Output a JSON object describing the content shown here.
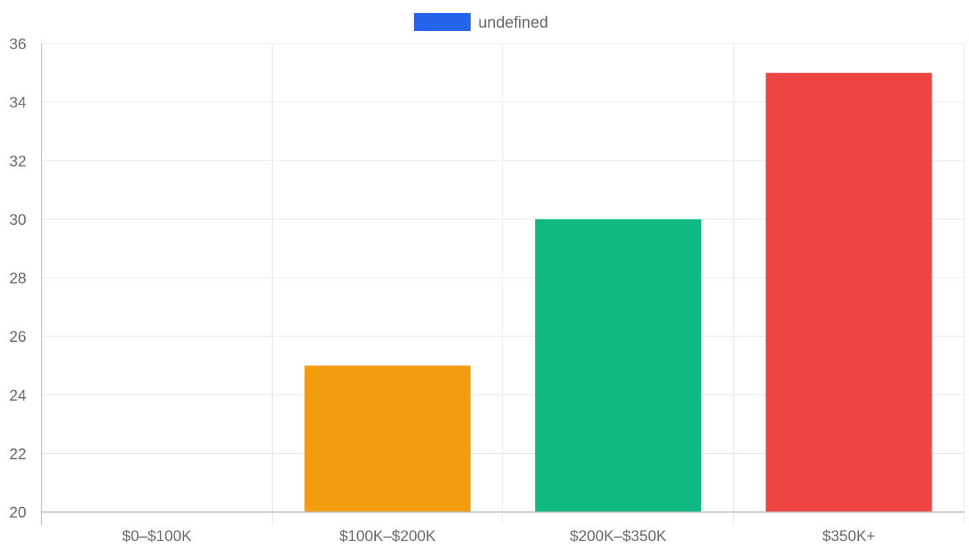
{
  "chart_data": {
    "type": "bar",
    "categories": [
      "$0–$100K",
      "$100K–$200K",
      "$200K–$350K",
      "$350K+"
    ],
    "series": [
      {
        "name": "undefined",
        "values": [
          20,
          25,
          30,
          35
        ],
        "colors": [
          "#2563eb",
          "#f39c0d",
          "#10b981",
          "#ef4444"
        ]
      }
    ],
    "legend": {
      "position": "top-center",
      "label": "undefined",
      "swatch_color": "#2563eb"
    },
    "ylim": [
      20,
      36
    ],
    "y_ticks": [
      "20",
      "22",
      "24",
      "26",
      "28",
      "30",
      "32",
      "34",
      "36"
    ],
    "grid": true,
    "colors": {
      "grid": "#e3e3e3",
      "axis": "#b5b5b5",
      "text": "#666666"
    }
  }
}
